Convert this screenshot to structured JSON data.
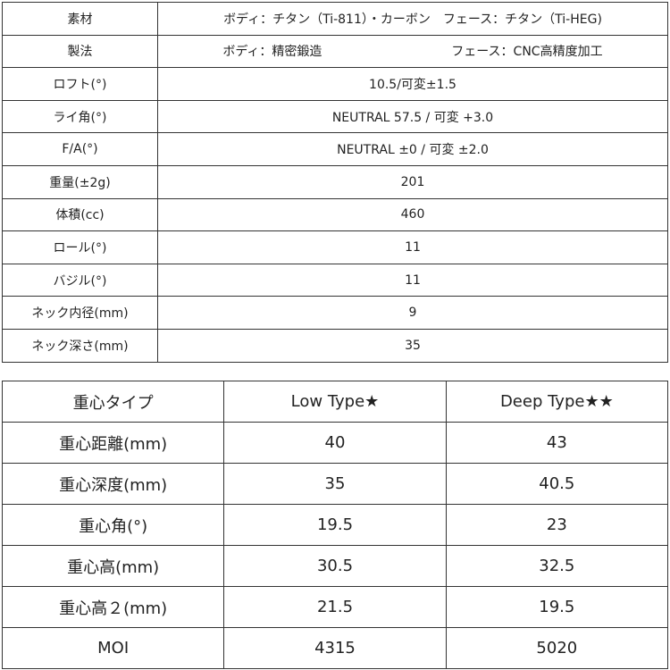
{
  "spec_table": {
    "rows": [
      {
        "label": "素材",
        "value": "ボディ：チタン（Ti-811）・カーボン　フェース：チタン（Ti-HEG)"
      },
      {
        "label": "製法",
        "value_left": "ボディ：精密鍛造",
        "value_right": "フェース：CNC高精度加工"
      },
      {
        "label": "ロフト(°)",
        "value": "10.5/可変±1.5"
      },
      {
        "label": "ライ角(°)",
        "value": "NEUTRAL 57.5 / 可変 +3.0"
      },
      {
        "label": "F/A(°)",
        "value": "NEUTRAL ±0 / 可変 ±2.0"
      },
      {
        "label": "重量(±2g)",
        "value": "201"
      },
      {
        "label": "体積(cc)",
        "value": "460"
      },
      {
        "label": "ロール(°)",
        "value": "11"
      },
      {
        "label": "バジル(°)",
        "value": "11"
      },
      {
        "label": "ネック内径(mm)",
        "value": "9"
      },
      {
        "label": "ネック深さ(mm)",
        "value": "35"
      }
    ]
  },
  "cg_table": {
    "headers": [
      "重心タイプ",
      "Low Type★",
      "Deep Type★★"
    ],
    "rows": [
      [
        "重心距離(mm)",
        "40",
        "43"
      ],
      [
        "重心深度(mm)",
        "35",
        "40.5"
      ],
      [
        "重心角(°)",
        "19.5",
        "23"
      ],
      [
        "重心高(mm)",
        "30.5",
        "32.5"
      ],
      [
        "重心高２(mm)",
        "21.5",
        "19.5"
      ],
      [
        "MOI",
        "4315",
        "5020"
      ]
    ]
  }
}
